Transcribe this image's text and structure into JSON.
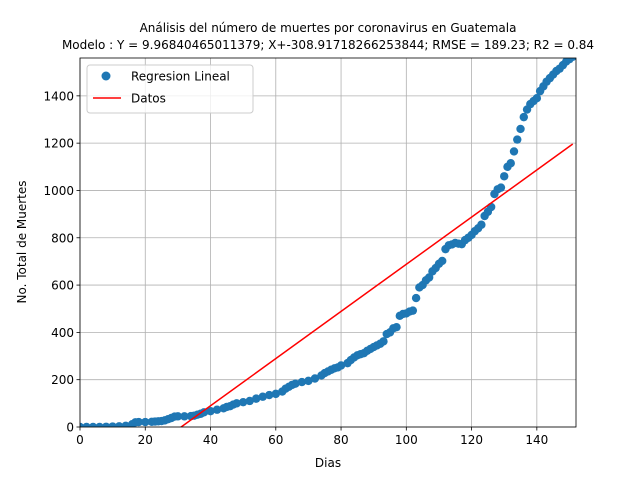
{
  "chart_data": {
    "type": "scatter",
    "title": "Análisis del número de muertes por coronavirus en Guatemala",
    "subtitle": "Modelo : Y = 9.96840465011379; X+-308.91718266253844; RMSE = 189.23; R2 = 0.84",
    "xlabel": "Dias",
    "ylabel": "No. Total de Muertes",
    "xlim": [
      0,
      152
    ],
    "ylim": [
      0,
      1560
    ],
    "x_ticks": [
      0,
      20,
      40,
      60,
      80,
      100,
      120,
      140
    ],
    "y_ticks": [
      0,
      200,
      400,
      600,
      800,
      1000,
      1200,
      1400
    ],
    "grid": true,
    "legend_position": "top-left",
    "series": [
      {
        "name": "Regresion Lineal",
        "kind": "scatter",
        "color": "#1f77b4",
        "points": [
          [
            0,
            0
          ],
          [
            2,
            0
          ],
          [
            4,
            0
          ],
          [
            6,
            0
          ],
          [
            8,
            1
          ],
          [
            10,
            2
          ],
          [
            12,
            3
          ],
          [
            14,
            5
          ],
          [
            16,
            12
          ],
          [
            17,
            20
          ],
          [
            18,
            21
          ],
          [
            20,
            21
          ],
          [
            22,
            22
          ],
          [
            23,
            23
          ],
          [
            24,
            24
          ],
          [
            25,
            25
          ],
          [
            26,
            28
          ],
          [
            27,
            33
          ],
          [
            28,
            38
          ],
          [
            29,
            44
          ],
          [
            30,
            45
          ],
          [
            32,
            45
          ],
          [
            34,
            46
          ],
          [
            35,
            48
          ],
          [
            36,
            52
          ],
          [
            37,
            56
          ],
          [
            38,
            62
          ],
          [
            40,
            67
          ],
          [
            42,
            73
          ],
          [
            44,
            79
          ],
          [
            45,
            85
          ],
          [
            46,
            88
          ],
          [
            47,
            95
          ],
          [
            48,
            100
          ],
          [
            50,
            105
          ],
          [
            52,
            110
          ],
          [
            54,
            120
          ],
          [
            56,
            128
          ],
          [
            58,
            135
          ],
          [
            60,
            140
          ],
          [
            62,
            150
          ],
          [
            63,
            162
          ],
          [
            64,
            170
          ],
          [
            65,
            178
          ],
          [
            66,
            183
          ],
          [
            68,
            190
          ],
          [
            70,
            195
          ],
          [
            72,
            205
          ],
          [
            74,
            218
          ],
          [
            75,
            228
          ],
          [
            76,
            235
          ],
          [
            77,
            242
          ],
          [
            78,
            248
          ],
          [
            79,
            252
          ],
          [
            80,
            260
          ],
          [
            82,
            270
          ],
          [
            83,
            283
          ],
          [
            84,
            294
          ],
          [
            85,
            303
          ],
          [
            86,
            308
          ],
          [
            87,
            312
          ],
          [
            88,
            322
          ],
          [
            89,
            330
          ],
          [
            90,
            338
          ],
          [
            91,
            345
          ],
          [
            92,
            352
          ],
          [
            93,
            362
          ],
          [
            94,
            393
          ],
          [
            95,
            400
          ],
          [
            96,
            417
          ],
          [
            97,
            422
          ],
          [
            98,
            470
          ],
          [
            99,
            478
          ],
          [
            100,
            480
          ],
          [
            101,
            488
          ],
          [
            102,
            492
          ],
          [
            103,
            545
          ],
          [
            104,
            590
          ],
          [
            105,
            600
          ],
          [
            106,
            620
          ],
          [
            107,
            632
          ],
          [
            108,
            658
          ],
          [
            109,
            672
          ],
          [
            110,
            690
          ],
          [
            111,
            702
          ],
          [
            112,
            752
          ],
          [
            113,
            768
          ],
          [
            114,
            772
          ],
          [
            115,
            778
          ],
          [
            116,
            775
          ],
          [
            117,
            773
          ],
          [
            118,
            790
          ],
          [
            119,
            800
          ],
          [
            120,
            812
          ],
          [
            121,
            828
          ],
          [
            122,
            840
          ],
          [
            123,
            855
          ],
          [
            124,
            892
          ],
          [
            125,
            910
          ],
          [
            126,
            930
          ],
          [
            127,
            985
          ],
          [
            128,
            1005
          ],
          [
            129,
            1012
          ],
          [
            130,
            1060
          ],
          [
            131,
            1100
          ],
          [
            132,
            1115
          ],
          [
            133,
            1165
          ],
          [
            134,
            1215
          ],
          [
            135,
            1260
          ],
          [
            136,
            1310
          ],
          [
            137,
            1342
          ],
          [
            138,
            1365
          ],
          [
            139,
            1378
          ],
          [
            140,
            1390
          ],
          [
            141,
            1420
          ],
          [
            142,
            1440
          ],
          [
            143,
            1460
          ],
          [
            144,
            1475
          ],
          [
            145,
            1490
          ],
          [
            146,
            1505
          ],
          [
            147,
            1515
          ],
          [
            148,
            1530
          ],
          [
            149,
            1545
          ],
          [
            150,
            1555
          ],
          [
            151,
            1565
          ]
        ]
      },
      {
        "name": "Datos",
        "kind": "line",
        "color": "#ff0000",
        "slope": 9.96840465011379,
        "intercept": -308.91718266253844,
        "x_range": [
          0,
          151
        ]
      }
    ]
  }
}
